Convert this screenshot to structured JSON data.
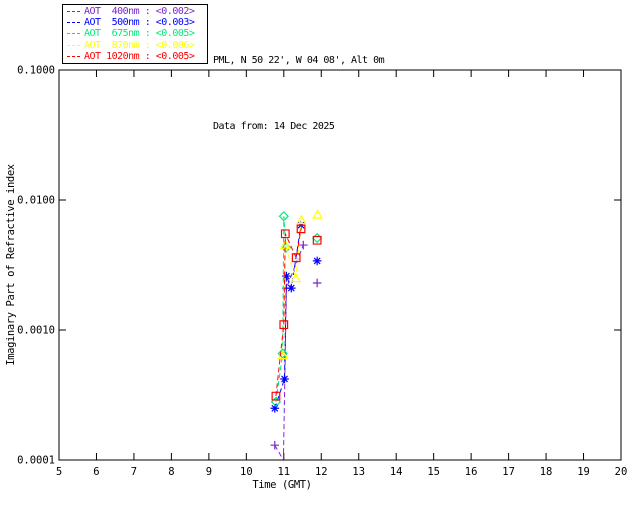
{
  "header": {
    "station_line": "PML, N 50 22', W 04 08', Alt 0m",
    "date_line": "Data from: 14 Dec 2025"
  },
  "chart_data": {
    "type": "line",
    "title": "PML, N 50 22', W 04 08', Alt 0m",
    "subtitle": "Data from: 14 Dec 2025",
    "xlabel": "Time (GMT)",
    "ylabel": "Imaginary Part of Refractive index",
    "xlim": [
      5,
      20
    ],
    "ylim": [
      0.0001,
      0.1
    ],
    "yscale": "log",
    "grid": false,
    "legend_position": "top-left-outside",
    "axis_color": "#000000",
    "background_color": "#ffffff",
    "xticks": [
      5,
      6,
      7,
      8,
      9,
      10,
      11,
      12,
      13,
      14,
      15,
      16,
      17,
      18,
      19,
      20
    ],
    "yticks": [
      {
        "value": 0.1,
        "label": "0.1000"
      },
      {
        "value": 0.01,
        "label": "0.0100"
      },
      {
        "value": 0.001,
        "label": "0.0010"
      },
      {
        "value": 0.0001,
        "label": "0.0001"
      }
    ],
    "series": [
      {
        "id": "aot-400nm",
        "legend_label": "AOT  400nm : <0.002>",
        "wavelength": "400nm",
        "mean_value": "<0.002>",
        "color": "#7d26cd",
        "marker": "plus",
        "dash": "5,3",
        "points": [
          [
            10.76,
            0.00013
          ],
          [
            10.99,
            0.0001
          ],
          [
            11.07,
            0.0021
          ],
          [
            11.52,
            0.0045
          ],
          [
            11.89,
            0.0023
          ]
        ],
        "marker_skip": [
          1
        ],
        "isolated_last_point": true
      },
      {
        "id": "aot-500nm",
        "legend_label": "AOT  500nm : <0.003>",
        "wavelength": "500nm",
        "mean_value": "<0.003>",
        "color": "#0000ff",
        "marker": "asterisk",
        "dash": "5,3",
        "points": [
          [
            10.76,
            0.00025
          ],
          [
            11.02,
            0.00042
          ],
          [
            11.07,
            0.0026
          ],
          [
            11.2,
            0.0021
          ],
          [
            11.46,
            0.0064
          ],
          [
            11.89,
            0.0034
          ]
        ],
        "marker_skip": [],
        "isolated_last_point": true
      },
      {
        "id": "aot-675nm",
        "legend_label": "AOT  675nm : <0.005>",
        "wavelength": "675nm",
        "mean_value": "<0.005>",
        "color": "#00e87a",
        "marker": "diamond",
        "dash": "5,3",
        "points": [
          [
            10.79,
            0.00028
          ],
          [
            10.97,
            0.00066
          ],
          [
            11.0,
            0.0075
          ],
          [
            11.06,
            0.0043
          ],
          [
            11.89,
            0.0051
          ]
        ],
        "marker_skip": [],
        "isolated_last_point": true
      },
      {
        "id": "aot-870nm",
        "legend_label": "AOT  870nm : <0.006>",
        "wavelength": "870nm",
        "mean_value": "<0.006>",
        "color": "#ffff00",
        "marker": "triangle",
        "dash": "5,3",
        "points": [
          [
            10.98,
            0.00064
          ],
          [
            11.04,
            0.0045
          ],
          [
            11.32,
            0.0025
          ],
          [
            11.47,
            0.007
          ],
          [
            11.9,
            0.0077
          ]
        ],
        "marker_skip": [],
        "isolated_last_point": true
      },
      {
        "id": "aot-1020nm",
        "legend_label": "AOT 1020nm : <0.005>",
        "wavelength": "1020nm",
        "mean_value": "<0.005>",
        "color": "#ff0000",
        "marker": "square",
        "dash": "5,3",
        "points": [
          [
            10.79,
            0.00031
          ],
          [
            11.0,
            0.0011
          ],
          [
            11.04,
            0.0055
          ],
          [
            11.33,
            0.0036
          ],
          [
            11.46,
            0.006
          ],
          [
            11.89,
            0.0049
          ]
        ],
        "marker_skip": [],
        "isolated_last_point": true
      }
    ]
  }
}
